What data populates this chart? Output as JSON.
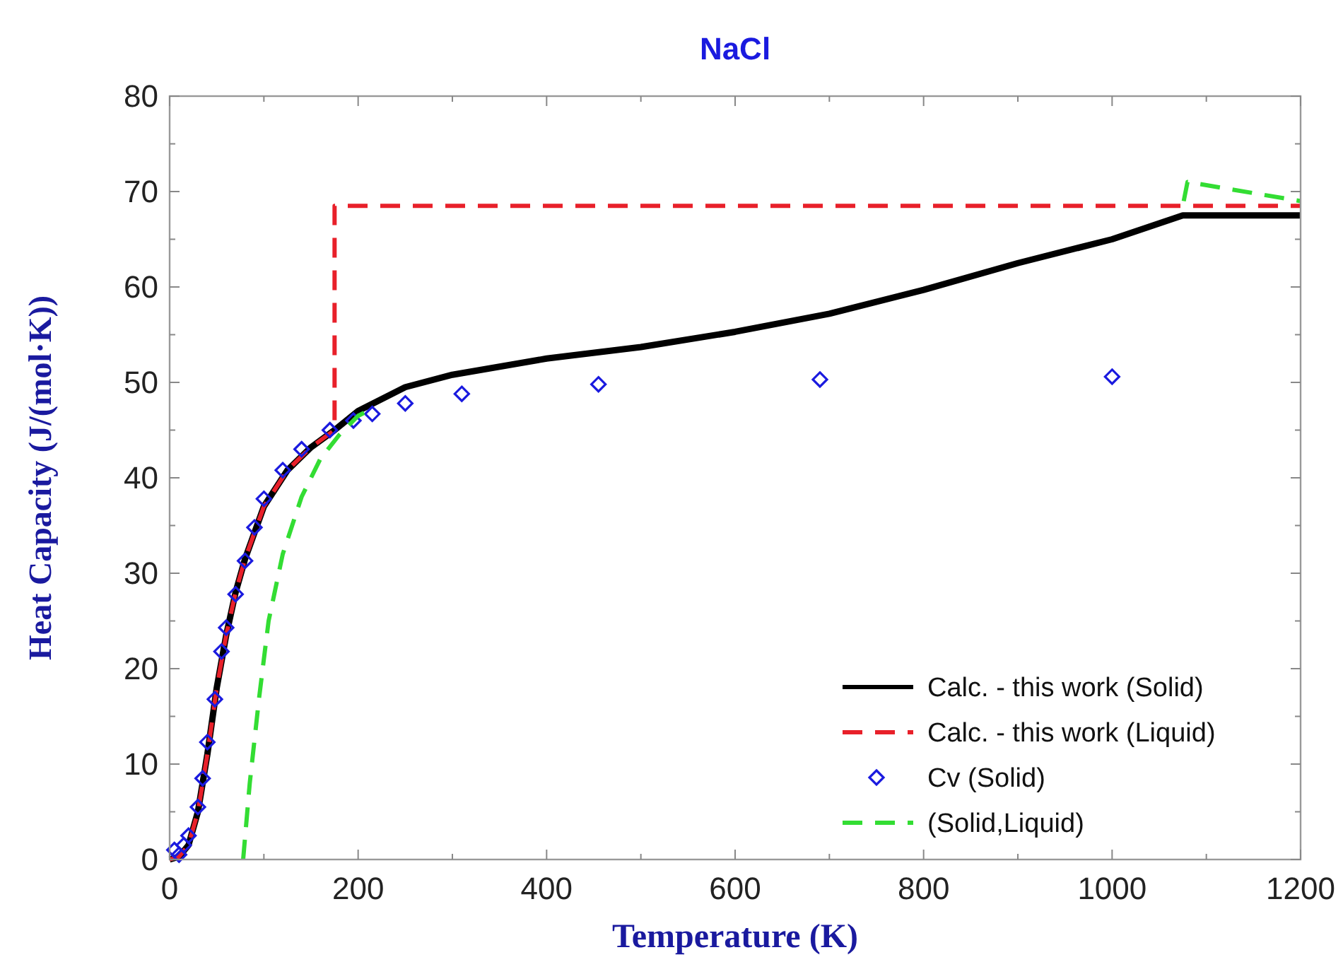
{
  "chart_data": {
    "type": "line",
    "title": "NaCl",
    "xlabel": "Temperature (K)",
    "ylabel": "Heat Capacity (J/(mol·K))",
    "xlim": [
      0,
      1200
    ],
    "ylim": [
      0,
      80
    ],
    "xticks": [
      0,
      {
        "value": 100,
        "label": null
      },
      200,
      {
        "value": 300,
        "label": null
      },
      400,
      {
        "value": 500,
        "label": null
      },
      600,
      {
        "value": 700,
        "label": null
      },
      800,
      {
        "value": 900,
        "label": null
      },
      1000,
      {
        "value": 1100,
        "label": null
      },
      1200
    ],
    "yticks": [
      0,
      {
        "value": 5,
        "label": null
      },
      10,
      {
        "value": 15,
        "label": null
      },
      20,
      {
        "value": 25,
        "label": null
      },
      30,
      {
        "value": 35,
        "label": null
      },
      40,
      {
        "value": 45,
        "label": null
      },
      50,
      {
        "value": 55,
        "label": null
      },
      60,
      {
        "value": 65,
        "label": null
      },
      70,
      {
        "value": 75,
        "label": null
      },
      80
    ],
    "grid": false,
    "legend": "bottom right",
    "series": [
      {
        "name": "Calc. - this work (Solid)",
        "color": "#000000",
        "line_style": "solid",
        "x": [
          0,
          10,
          20,
          30,
          40,
          50,
          60,
          70,
          80,
          100,
          125,
          150,
          175,
          200,
          250,
          300,
          400,
          500,
          600,
          700,
          800,
          900,
          1000,
          1075,
          1200
        ],
        "values": [
          0,
          0.3,
          1.5,
          5,
          11,
          18,
          23.5,
          28,
          31.5,
          37,
          40.8,
          43.2,
          45,
          47,
          49.5,
          50.8,
          52.5,
          53.7,
          55.3,
          57.2,
          59.7,
          62.5,
          65,
          67.5,
          67.5
        ]
      },
      {
        "name": "Calc. - this work (Liquid)",
        "color": "#e8202a",
        "line_style": "dashed",
        "x": [
          0,
          10,
          20,
          30,
          40,
          50,
          60,
          70,
          80,
          100,
          125,
          150,
          175,
          175,
          1200
        ],
        "values": [
          0,
          0.3,
          1.5,
          5,
          11,
          18,
          23.5,
          28,
          31.5,
          37,
          40.8,
          43.2,
          45,
          68.5,
          68.5
        ]
      },
      {
        "name": "Cv (Solid)",
        "type": "scatter",
        "color": "#1a1adf",
        "marker": "diamond",
        "x": [
          5,
          10,
          15,
          20,
          30,
          35,
          40,
          48,
          55,
          60,
          70,
          80,
          90,
          100,
          120,
          140,
          170,
          195,
          215,
          250,
          310,
          455,
          690,
          1000
        ],
        "values": [
          1,
          0.5,
          1.5,
          2.5,
          5.5,
          8.5,
          12.3,
          16.8,
          21.8,
          24.3,
          27.8,
          31.3,
          34.8,
          37.8,
          40.8,
          43,
          45,
          46,
          46.7,
          47.8,
          48.8,
          49.8,
          50.3,
          50.6
        ]
      },
      {
        "name": "(Solid,Liquid)",
        "color": "#33dd33",
        "line_style": "dashed",
        "x": [
          78,
          85,
          95,
          105,
          120,
          140,
          160,
          180,
          200,
          210,
          null,
          1076,
          1080,
          1200
        ],
        "values": [
          0,
          8,
          17,
          25,
          32,
          38,
          42,
          44.5,
          46.5,
          47,
          null,
          69,
          71,
          69
        ]
      }
    ]
  }
}
